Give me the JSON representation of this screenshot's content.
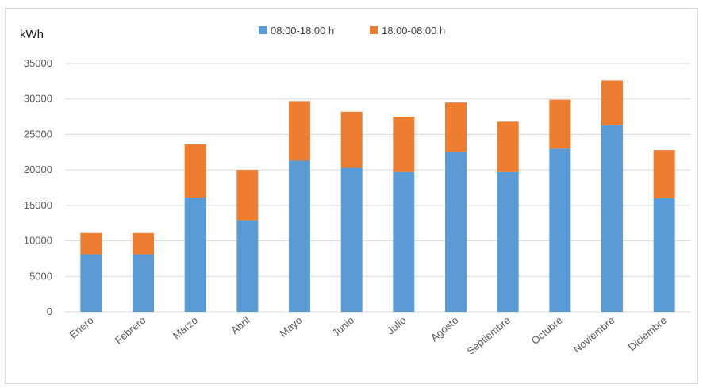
{
  "chart_data": {
    "type": "bar",
    "stacked": true,
    "ylabel": "kWh",
    "ylim": [
      0,
      35000
    ],
    "yticks": [
      0,
      5000,
      10000,
      15000,
      20000,
      25000,
      30000,
      35000
    ],
    "grid": true,
    "legend_position": "top-center",
    "categories": [
      "Enero",
      "Febrero",
      "Marzo",
      "Abril",
      "Mayo",
      "Junio",
      "Julio",
      "Agosto",
      "Septiembre",
      "Octubre",
      "Noviembre",
      "Diciembre"
    ],
    "series": [
      {
        "name": "08:00-18:00 h",
        "color": "#5b9bd5",
        "values": [
          8100,
          8100,
          16100,
          12900,
          21300,
          20300,
          19700,
          22500,
          19700,
          23000,
          26300,
          16000
        ]
      },
      {
        "name": "18:00-08:00 h",
        "color": "#ed7d31",
        "values": [
          3000,
          3000,
          7500,
          7100,
          8400,
          7900,
          7800,
          7000,
          7100,
          6900,
          6300,
          6800
        ]
      }
    ]
  }
}
